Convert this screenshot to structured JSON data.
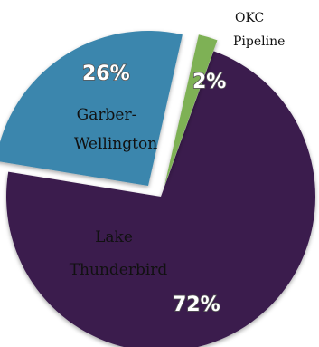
{
  "chart_data": {
    "type": "pie",
    "slices": [
      {
        "name": "Lake Thunderbird",
        "value": 72,
        "label": "72%",
        "color": "#3a1a4e"
      },
      {
        "name": "Garber-Wellington",
        "value": 26,
        "label": "26%",
        "color": "#3a86ad"
      },
      {
        "name": "OKC Pipeline",
        "value": 2,
        "label": "2%",
        "color": "#7eb154"
      }
    ],
    "slice_labels": {
      "lake_line1": "Lake",
      "lake_line2": "Thunderbird",
      "garber_line1": "Garber-",
      "garber_line2": "Wellington",
      "okc_line1": "OKC",
      "okc_line2": "Pipeline"
    }
  }
}
